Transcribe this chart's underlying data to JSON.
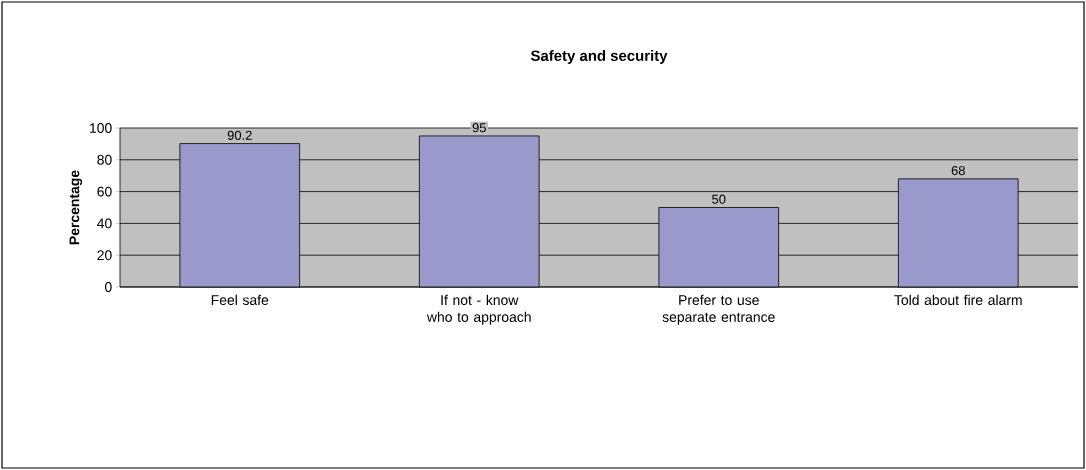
{
  "chart_data": {
    "type": "bar",
    "title": "Safety and security",
    "ylabel": "Percentage",
    "categories": [
      "Feel safe",
      "If not - know who to approach",
      "Prefer to use separate entrance",
      "Told about fire alarm"
    ],
    "values": [
      90.2,
      95,
      50,
      68
    ],
    "color": "#9999cc",
    "ylim": [
      0,
      100
    ],
    "yticks": [
      0,
      20,
      40,
      60,
      80,
      100
    ],
    "grid": "y",
    "data_labels": true
  }
}
